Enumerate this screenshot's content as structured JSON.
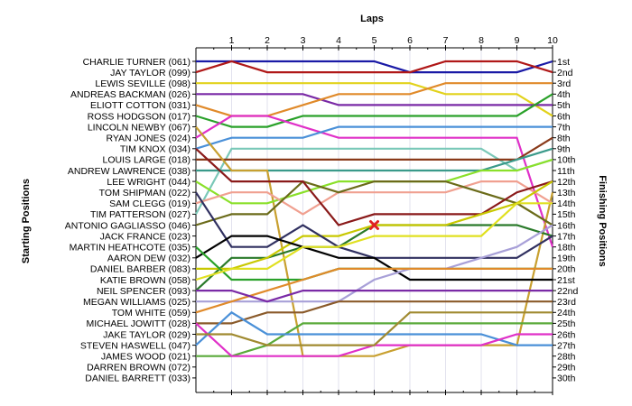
{
  "chart_data": {
    "type": "line",
    "title": "Laps",
    "left_axis_label": "Starting Positions",
    "right_axis_label": "Finishing Positions",
    "laps": [
      1,
      2,
      3,
      4,
      5,
      6,
      7,
      8,
      9,
      10
    ],
    "drivers": [
      "CHARLIE TURNER (061)",
      "JAY TAYLOR (099)",
      "LEWIS SEVILLE (098)",
      "ANDREAS BACKMAN (026)",
      "ELIOTT COTTON (031)",
      "ROSS HODGSON (017)",
      "LINCOLN NEWBY (067)",
      "RYAN JONES (024)",
      "TIM KNOX (034)",
      "LOUIS LARGE (018)",
      "ANDREW LAWRENCE (038)",
      "LEE WRIGHT (044)",
      "TOM SHIPMAN (022)",
      "SAM CLEGG (019)",
      "TIM PATTERSON (027)",
      "ANTONIO GAGLIASSO (046)",
      "JACK FRANCE (023)",
      "MARTIN HEATHCOTE (035)",
      "AARON DEW (032)",
      "DANIEL BARBER (083)",
      "KATIE BROWN (058)",
      "NEIL SPENCER (093)",
      "MEGAN WILLIAMS (025)",
      "TOM WHITE (059)",
      "MICHAEL JOWITT (028)",
      "JAKE TAYLOR (029)",
      "STEVEN HASWELL (047)",
      "JAMES WOOD (021)",
      "DARREN BROWN (072)",
      "DANIEL BARRETT (033)"
    ],
    "finishing_labels": [
      "1st",
      "2nd",
      "3rd",
      "4th",
      "5th",
      "6th",
      "7th",
      "8th",
      "9th",
      "10th",
      "11th",
      "12th",
      "13th",
      "14th",
      "15th",
      "16th",
      "17th",
      "18th",
      "19th",
      "20th",
      "21st",
      "22nd",
      "23rd",
      "24th",
      "25th",
      "26th",
      "27th",
      "28th",
      "29th",
      "30th"
    ],
    "series": [
      {
        "color": "#1a1aa6",
        "positions": [
          1,
          1,
          1,
          1,
          1,
          1,
          2,
          2,
          2,
          2,
          1
        ]
      },
      {
        "color": "#b01818",
        "positions": [
          2,
          1,
          2,
          2,
          2,
          2,
          2,
          1,
          1,
          1,
          2
        ]
      },
      {
        "color": "#e2d21c",
        "positions": [
          3,
          3,
          3,
          3,
          3,
          3,
          3,
          4,
          4,
          4,
          6
        ]
      },
      {
        "color": "#7a2aa6",
        "positions": [
          4,
          4,
          4,
          4,
          5,
          5,
          5,
          5,
          5,
          5,
          5
        ]
      },
      {
        "color": "#e08a2a",
        "positions": [
          5,
          6,
          6,
          5,
          4,
          4,
          4,
          3,
          3,
          3,
          3
        ]
      },
      {
        "color": "#2aa12a",
        "positions": [
          6,
          7,
          7,
          6,
          6,
          6,
          6,
          6,
          6,
          6,
          4
        ]
      },
      {
        "color": "#e030c8",
        "positions": [
          8,
          6,
          6,
          7,
          8,
          8,
          8,
          8,
          8,
          8,
          18
        ]
      },
      {
        "color": "#4a90d8",
        "positions": [
          9,
          8,
          8,
          8,
          7,
          7,
          7,
          7,
          7,
          7,
          7
        ]
      },
      {
        "color": "#7ac8b8",
        "positions": [
          15,
          9,
          9,
          9,
          9,
          9,
          9,
          9,
          9,
          11,
          10
        ]
      },
      {
        "color": "#8a3a1a",
        "positions": [
          10,
          10,
          10,
          10,
          10,
          10,
          10,
          10,
          10,
          10,
          8
        ]
      },
      {
        "color": "#3a9a8a",
        "positions": [
          11,
          11,
          11,
          11,
          11,
          11,
          11,
          11,
          11,
          10,
          9
        ]
      },
      {
        "color": "#c8a030",
        "positions": [
          7,
          11,
          11,
          28,
          28,
          28,
          27,
          27,
          27,
          27,
          13
        ]
      },
      {
        "color": "#8ae02a",
        "positions": [
          12,
          14,
          14,
          13,
          12,
          12,
          12,
          12,
          11,
          11,
          10
        ]
      },
      {
        "color": "#f0a090",
        "positions": [
          14,
          13,
          13,
          15,
          13,
          13,
          13,
          13,
          12,
          12,
          14
        ]
      },
      {
        "color": "#6b6b1a",
        "positions": [
          16,
          15,
          15,
          12,
          13,
          12,
          12,
          12,
          13,
          14,
          16
        ]
      },
      {
        "color": "#8a1a1a",
        "positions": [
          9,
          12,
          12,
          12,
          16,
          15,
          15,
          15,
          15,
          13,
          12
        ]
      },
      {
        "color": "#2a7a2a",
        "positions": [
          22,
          19,
          19,
          18,
          18,
          16,
          16,
          16,
          16,
          16,
          17
        ]
      },
      {
        "color": "#c8c800",
        "positions": [
          20,
          20,
          19,
          17,
          17,
          16,
          16,
          16,
          15,
          14,
          12
        ]
      },
      {
        "color": "#303060",
        "positions": [
          13,
          18,
          18,
          16,
          18,
          19,
          19,
          19,
          19,
          19,
          17
        ]
      },
      {
        "color": "#000000",
        "positions": [
          19,
          17,
          17,
          18,
          19,
          19,
          21,
          21,
          21,
          21,
          21
        ]
      },
      {
        "color": "#2aa12a",
        "positions": [
          18,
          21,
          21,
          21,
          20,
          20,
          20,
          20,
          20,
          20,
          20
        ]
      },
      {
        "color": "#e0e020",
        "positions": [
          21,
          20,
          20,
          18,
          18,
          17,
          17,
          17,
          17,
          14,
          14
        ]
      },
      {
        "color": "#a8a0d8",
        "positions": [
          23,
          23,
          23,
          23,
          23,
          21,
          20,
          20,
          19,
          18,
          16
        ]
      },
      {
        "color": "#e08a2a",
        "positions": [
          24,
          23,
          22,
          21,
          20,
          20,
          20,
          20,
          20,
          20,
          20
        ]
      },
      {
        "color": "#7a2aa6",
        "positions": [
          22,
          22,
          23,
          22,
          22,
          22,
          22,
          22,
          22,
          22,
          22
        ]
      },
      {
        "color": "#8a5a2a",
        "positions": [
          25,
          25,
          24,
          24,
          23,
          23,
          23,
          23,
          23,
          23,
          23
        ]
      },
      {
        "color": "#5aaa3a",
        "positions": [
          28,
          28,
          27,
          25,
          25,
          25,
          25,
          25,
          25,
          25,
          25
        ]
      },
      {
        "color": "#4a90d8",
        "positions": [
          27,
          24,
          26,
          26,
          26,
          26,
          26,
          26,
          26,
          27,
          27
        ]
      },
      {
        "color": "#e030c8",
        "positions": [
          25,
          28,
          28,
          28,
          28,
          27,
          27,
          27,
          27,
          26,
          26
        ]
      },
      {
        "color": "#a08a30",
        "positions": [
          26,
          26,
          27,
          27,
          27,
          27,
          24,
          24,
          24,
          24,
          24
        ]
      }
    ]
  }
}
